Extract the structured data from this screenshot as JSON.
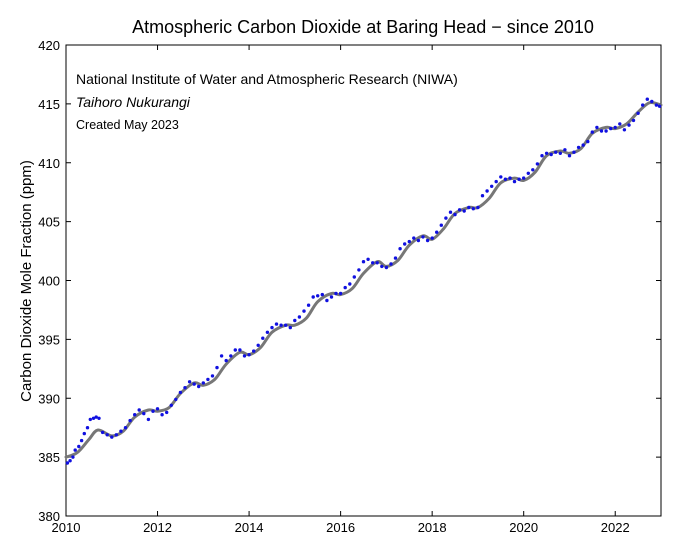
{
  "chart_data": {
    "type": "scatter",
    "title": "Atmospheric Carbon Dioxide at Baring Head − since 2010",
    "xlabel": "",
    "ylabel": "Carbon Dioxide Mole Fraction (ppm)",
    "xlim": [
      2010,
      2023
    ],
    "ylim": [
      380,
      420
    ],
    "x_ticks": [
      2010,
      2012,
      2014,
      2016,
      2018,
      2020,
      2022
    ],
    "y_ticks": [
      380,
      385,
      390,
      395,
      400,
      405,
      410,
      415,
      420
    ],
    "grid": false,
    "annotations": [
      "National Institute of Water and Atmospheric Research (NIWA)",
      "Taihoro Nukurangi",
      "Created May 2023"
    ],
    "series": [
      {
        "kind": "line",
        "color": "#777777",
        "x": [
          2010.0,
          2010.25,
          2010.5,
          2010.7,
          2011.0,
          2011.25,
          2011.5,
          2011.8,
          2012.0,
          2012.25,
          2012.5,
          2012.8,
          2013.0,
          2013.25,
          2013.5,
          2013.8,
          2014.0,
          2014.25,
          2014.5,
          2014.8,
          2015.0,
          2015.25,
          2015.5,
          2015.8,
          2016.0,
          2016.25,
          2016.5,
          2016.8,
          2017.0,
          2017.25,
          2017.5,
          2017.8,
          2018.0,
          2018.25,
          2018.5,
          2018.8,
          2019.0,
          2019.25,
          2019.5,
          2019.8,
          2020.0,
          2020.25,
          2020.5,
          2020.8,
          2021.0,
          2021.25,
          2021.5,
          2021.8,
          2022.0,
          2022.25,
          2022.5,
          2022.75,
          2023.0
        ],
        "y": [
          385.0,
          385.4,
          386.5,
          387.3,
          386.8,
          387.2,
          388.4,
          389.0,
          388.9,
          389.2,
          390.4,
          391.3,
          391.1,
          391.6,
          392.9,
          393.9,
          393.7,
          394.3,
          395.6,
          396.2,
          396.2,
          396.8,
          398.2,
          398.9,
          398.8,
          399.3,
          400.6,
          401.6,
          401.2,
          401.7,
          403.0,
          403.8,
          403.5,
          404.4,
          405.7,
          406.2,
          406.2,
          407.0,
          408.3,
          408.7,
          408.5,
          409.2,
          410.6,
          411.0,
          410.8,
          411.2,
          412.5,
          413.0,
          412.9,
          413.3,
          414.3,
          415.1,
          414.9
        ]
      },
      {
        "kind": "points",
        "color": "#1010e0",
        "x": [
          2010.03,
          2010.09,
          2010.15,
          2010.2,
          2010.28,
          2010.34,
          2010.4,
          2010.47,
          2010.53,
          2010.6,
          2010.66,
          2010.72,
          2010.8,
          2010.9,
          2011.0,
          2011.1,
          2011.2,
          2011.3,
          2011.4,
          2011.5,
          2011.6,
          2011.7,
          2011.8,
          2011.9,
          2012.0,
          2012.1,
          2012.2,
          2012.3,
          2012.4,
          2012.5,
          2012.6,
          2012.7,
          2012.8,
          2012.9,
          2013.0,
          2013.1,
          2013.2,
          2013.3,
          2013.4,
          2013.5,
          2013.6,
          2013.7,
          2013.8,
          2013.9,
          2014.0,
          2014.1,
          2014.2,
          2014.3,
          2014.4,
          2014.5,
          2014.6,
          2014.7,
          2014.8,
          2014.9,
          2015.0,
          2015.1,
          2015.2,
          2015.3,
          2015.4,
          2015.5,
          2015.6,
          2015.7,
          2015.8,
          2015.9,
          2016.0,
          2016.1,
          2016.2,
          2016.3,
          2016.4,
          2016.5,
          2016.6,
          2016.7,
          2016.8,
          2016.9,
          2017.0,
          2017.1,
          2017.2,
          2017.3,
          2017.4,
          2017.5,
          2017.6,
          2017.7,
          2017.8,
          2017.9,
          2018.0,
          2018.1,
          2018.2,
          2018.3,
          2018.4,
          2018.5,
          2018.6,
          2018.7,
          2018.8,
          2018.9,
          2019.0,
          2019.1,
          2019.2,
          2019.3,
          2019.4,
          2019.5,
          2019.6,
          2019.7,
          2019.8,
          2019.9,
          2020.0,
          2020.1,
          2020.2,
          2020.3,
          2020.4,
          2020.5,
          2020.6,
          2020.7,
          2020.8,
          2020.9,
          2021.0,
          2021.1,
          2021.2,
          2021.3,
          2021.4,
          2021.5,
          2021.6,
          2021.7,
          2021.8,
          2021.9,
          2022.0,
          2022.1,
          2022.2,
          2022.3,
          2022.4,
          2022.5,
          2022.6,
          2022.7,
          2022.8,
          2022.9,
          2022.97
        ],
        "y": [
          384.5,
          384.7,
          385.0,
          385.6,
          385.9,
          386.4,
          387.0,
          387.5,
          388.2,
          388.3,
          388.4,
          388.3,
          387.1,
          386.9,
          386.7,
          386.9,
          387.2,
          387.5,
          388.1,
          388.6,
          389.0,
          388.7,
          388.2,
          388.9,
          389.1,
          388.6,
          388.8,
          389.4,
          389.9,
          390.5,
          390.9,
          391.4,
          391.2,
          391.0,
          391.3,
          391.6,
          391.9,
          392.6,
          393.6,
          393.2,
          393.6,
          394.1,
          394.1,
          393.6,
          393.7,
          394.0,
          394.5,
          395.1,
          395.6,
          396.0,
          396.3,
          396.2,
          396.2,
          396.0,
          396.6,
          396.9,
          397.4,
          397.9,
          398.6,
          398.7,
          398.8,
          398.3,
          398.6,
          398.9,
          398.9,
          399.4,
          399.7,
          400.3,
          400.9,
          401.6,
          401.8,
          401.5,
          401.5,
          401.2,
          401.1,
          401.4,
          401.9,
          402.7,
          403.1,
          403.3,
          403.6,
          403.4,
          403.7,
          403.4,
          403.6,
          404.1,
          404.7,
          405.3,
          405.8,
          405.6,
          406.0,
          405.9,
          406.2,
          406.1,
          406.2,
          407.2,
          407.6,
          408.0,
          408.4,
          408.8,
          408.6,
          408.7,
          408.4,
          408.6,
          408.7,
          409.1,
          409.4,
          409.9,
          410.6,
          410.8,
          410.7,
          410.9,
          410.8,
          411.1,
          410.6,
          410.9,
          411.3,
          411.5,
          411.8,
          412.6,
          413.0,
          412.7,
          412.7,
          412.9,
          413.0,
          413.3,
          412.8,
          413.2,
          413.6,
          414.2,
          414.9,
          415.4,
          415.2,
          414.9,
          414.8
        ]
      }
    ]
  }
}
